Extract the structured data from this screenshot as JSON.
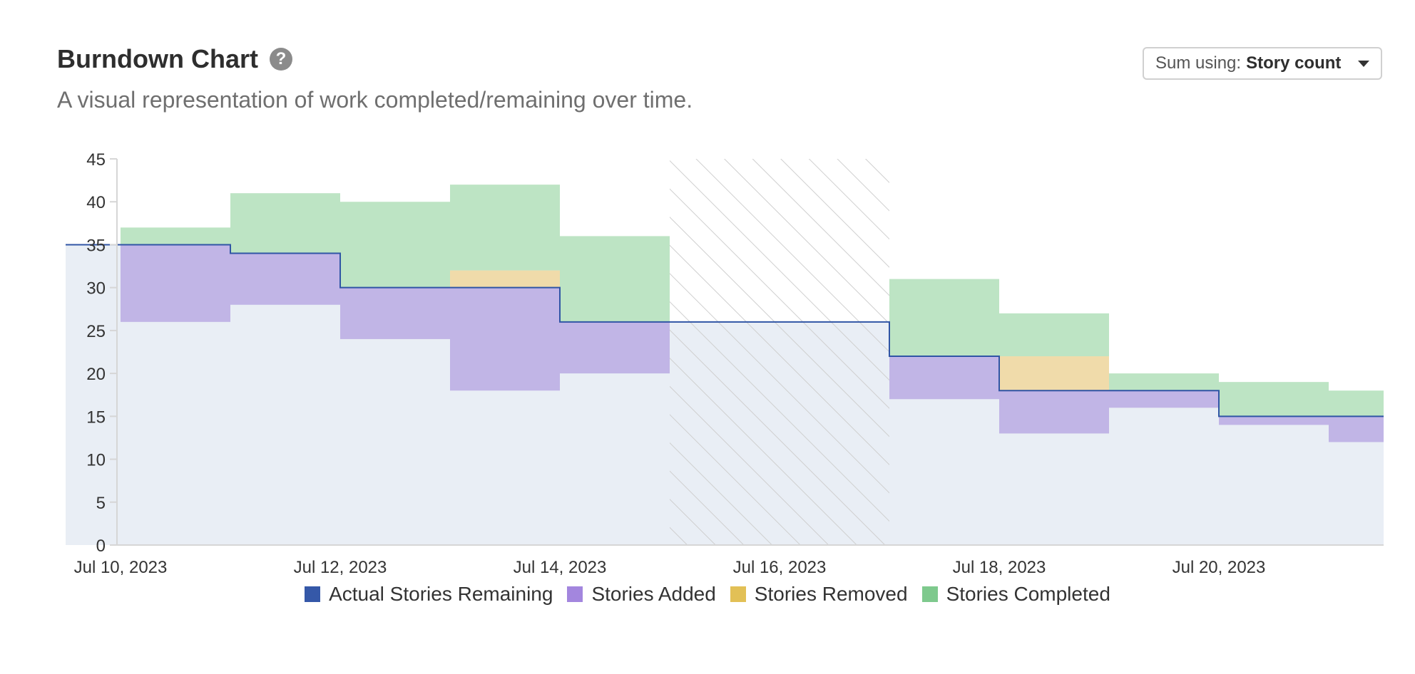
{
  "header": {
    "title": "Burndown Chart",
    "help_icon": "question-circle-icon",
    "subtitle": "A visual representation of work completed/remaining over time."
  },
  "controls": {
    "sum_label": "Sum using:",
    "sum_value": "Story count",
    "dropdown_icon": "caret-down-icon"
  },
  "colors": {
    "remaining_fill": "#e9eef5",
    "remaining_line": "#3055a5",
    "added": "#c1b5e6",
    "removed": "#f0dbaa",
    "completed": "#bde4c4",
    "hatch": "#cfcfcf",
    "legend_remaining": "#3558a8",
    "legend_added": "#a386de",
    "legend_removed": "#e2c056",
    "legend_completed": "#7ec98d"
  },
  "chart_data": {
    "type": "area",
    "title": "Burndown Chart",
    "ylim": [
      0,
      45
    ],
    "yticks": [
      0,
      5,
      10,
      15,
      20,
      25,
      30,
      35,
      40,
      45
    ],
    "xlim": [
      "2023-07-09T12:00",
      "2023-07-21T12:00"
    ],
    "xticks": [
      "Jul 10, 2023",
      "Jul 12, 2023",
      "Jul 14, 2023",
      "Jul 16, 2023",
      "Jul 18, 2023",
      "Jul 20, 2023"
    ],
    "xtick_dates": [
      "2023-07-10",
      "2023-07-12",
      "2023-07-14",
      "2023-07-16",
      "2023-07-18",
      "2023-07-20"
    ],
    "initial_remaining": 35,
    "intervals": [
      {
        "start": "2023-07-10",
        "end": "2023-07-11",
        "remaining": 35,
        "added_from": 26,
        "added_to": 35,
        "removed_from": null,
        "removed_to": null,
        "completed_from": 35,
        "completed_to": 37
      },
      {
        "start": "2023-07-11",
        "end": "2023-07-12",
        "remaining": 34,
        "added_from": 28,
        "added_to": 34,
        "removed_from": null,
        "removed_to": null,
        "completed_from": 34,
        "completed_to": 41
      },
      {
        "start": "2023-07-12",
        "end": "2023-07-13",
        "remaining": 30,
        "added_from": 24,
        "added_to": 30,
        "removed_from": null,
        "removed_to": null,
        "completed_from": 30,
        "completed_to": 40
      },
      {
        "start": "2023-07-13",
        "end": "2023-07-14",
        "remaining": 30,
        "added_from": 18,
        "added_to": 30,
        "removed_from": 30,
        "removed_to": 32,
        "completed_from": 32,
        "completed_to": 42
      },
      {
        "start": "2023-07-14",
        "end": "2023-07-15",
        "remaining": 26,
        "added_from": 20,
        "added_to": 26,
        "removed_from": null,
        "removed_to": null,
        "completed_from": 26,
        "completed_to": 36
      },
      {
        "start": "2023-07-15",
        "end": "2023-07-17",
        "remaining": 26,
        "added_from": null,
        "added_to": null,
        "removed_from": null,
        "removed_to": null,
        "completed_from": null,
        "completed_to": null
      },
      {
        "start": "2023-07-17",
        "end": "2023-07-18",
        "remaining": 22,
        "added_from": 17,
        "added_to": 22,
        "removed_from": null,
        "removed_to": null,
        "completed_from": 22,
        "completed_to": 31
      },
      {
        "start": "2023-07-18",
        "end": "2023-07-19",
        "remaining": 18,
        "added_from": 13,
        "added_to": 18,
        "removed_from": 18,
        "removed_to": 22,
        "completed_from": 22,
        "completed_to": 27
      },
      {
        "start": "2023-07-19",
        "end": "2023-07-20",
        "remaining": 18,
        "added_from": 16,
        "added_to": 18,
        "removed_from": null,
        "removed_to": null,
        "completed_from": 18,
        "completed_to": 20
      },
      {
        "start": "2023-07-20",
        "end": "2023-07-21",
        "remaining": 15,
        "added_from": 14,
        "added_to": 15,
        "removed_from": null,
        "removed_to": null,
        "completed_from": 15,
        "completed_to": 19
      },
      {
        "start": "2023-07-21",
        "end": "2023-07-21T12:00",
        "remaining": 15,
        "added_from": 12,
        "added_to": 15,
        "removed_from": null,
        "removed_to": null,
        "completed_from": 15,
        "completed_to": 18
      }
    ],
    "non_working_period": {
      "start": "2023-07-15",
      "end": "2023-07-17"
    },
    "legend": [
      {
        "key": "remaining",
        "label": "Actual Stories Remaining"
      },
      {
        "key": "added",
        "label": "Stories Added"
      },
      {
        "key": "removed",
        "label": "Stories Removed"
      },
      {
        "key": "completed",
        "label": "Stories Completed"
      }
    ],
    "legend_position": "bottom",
    "grid": false
  }
}
